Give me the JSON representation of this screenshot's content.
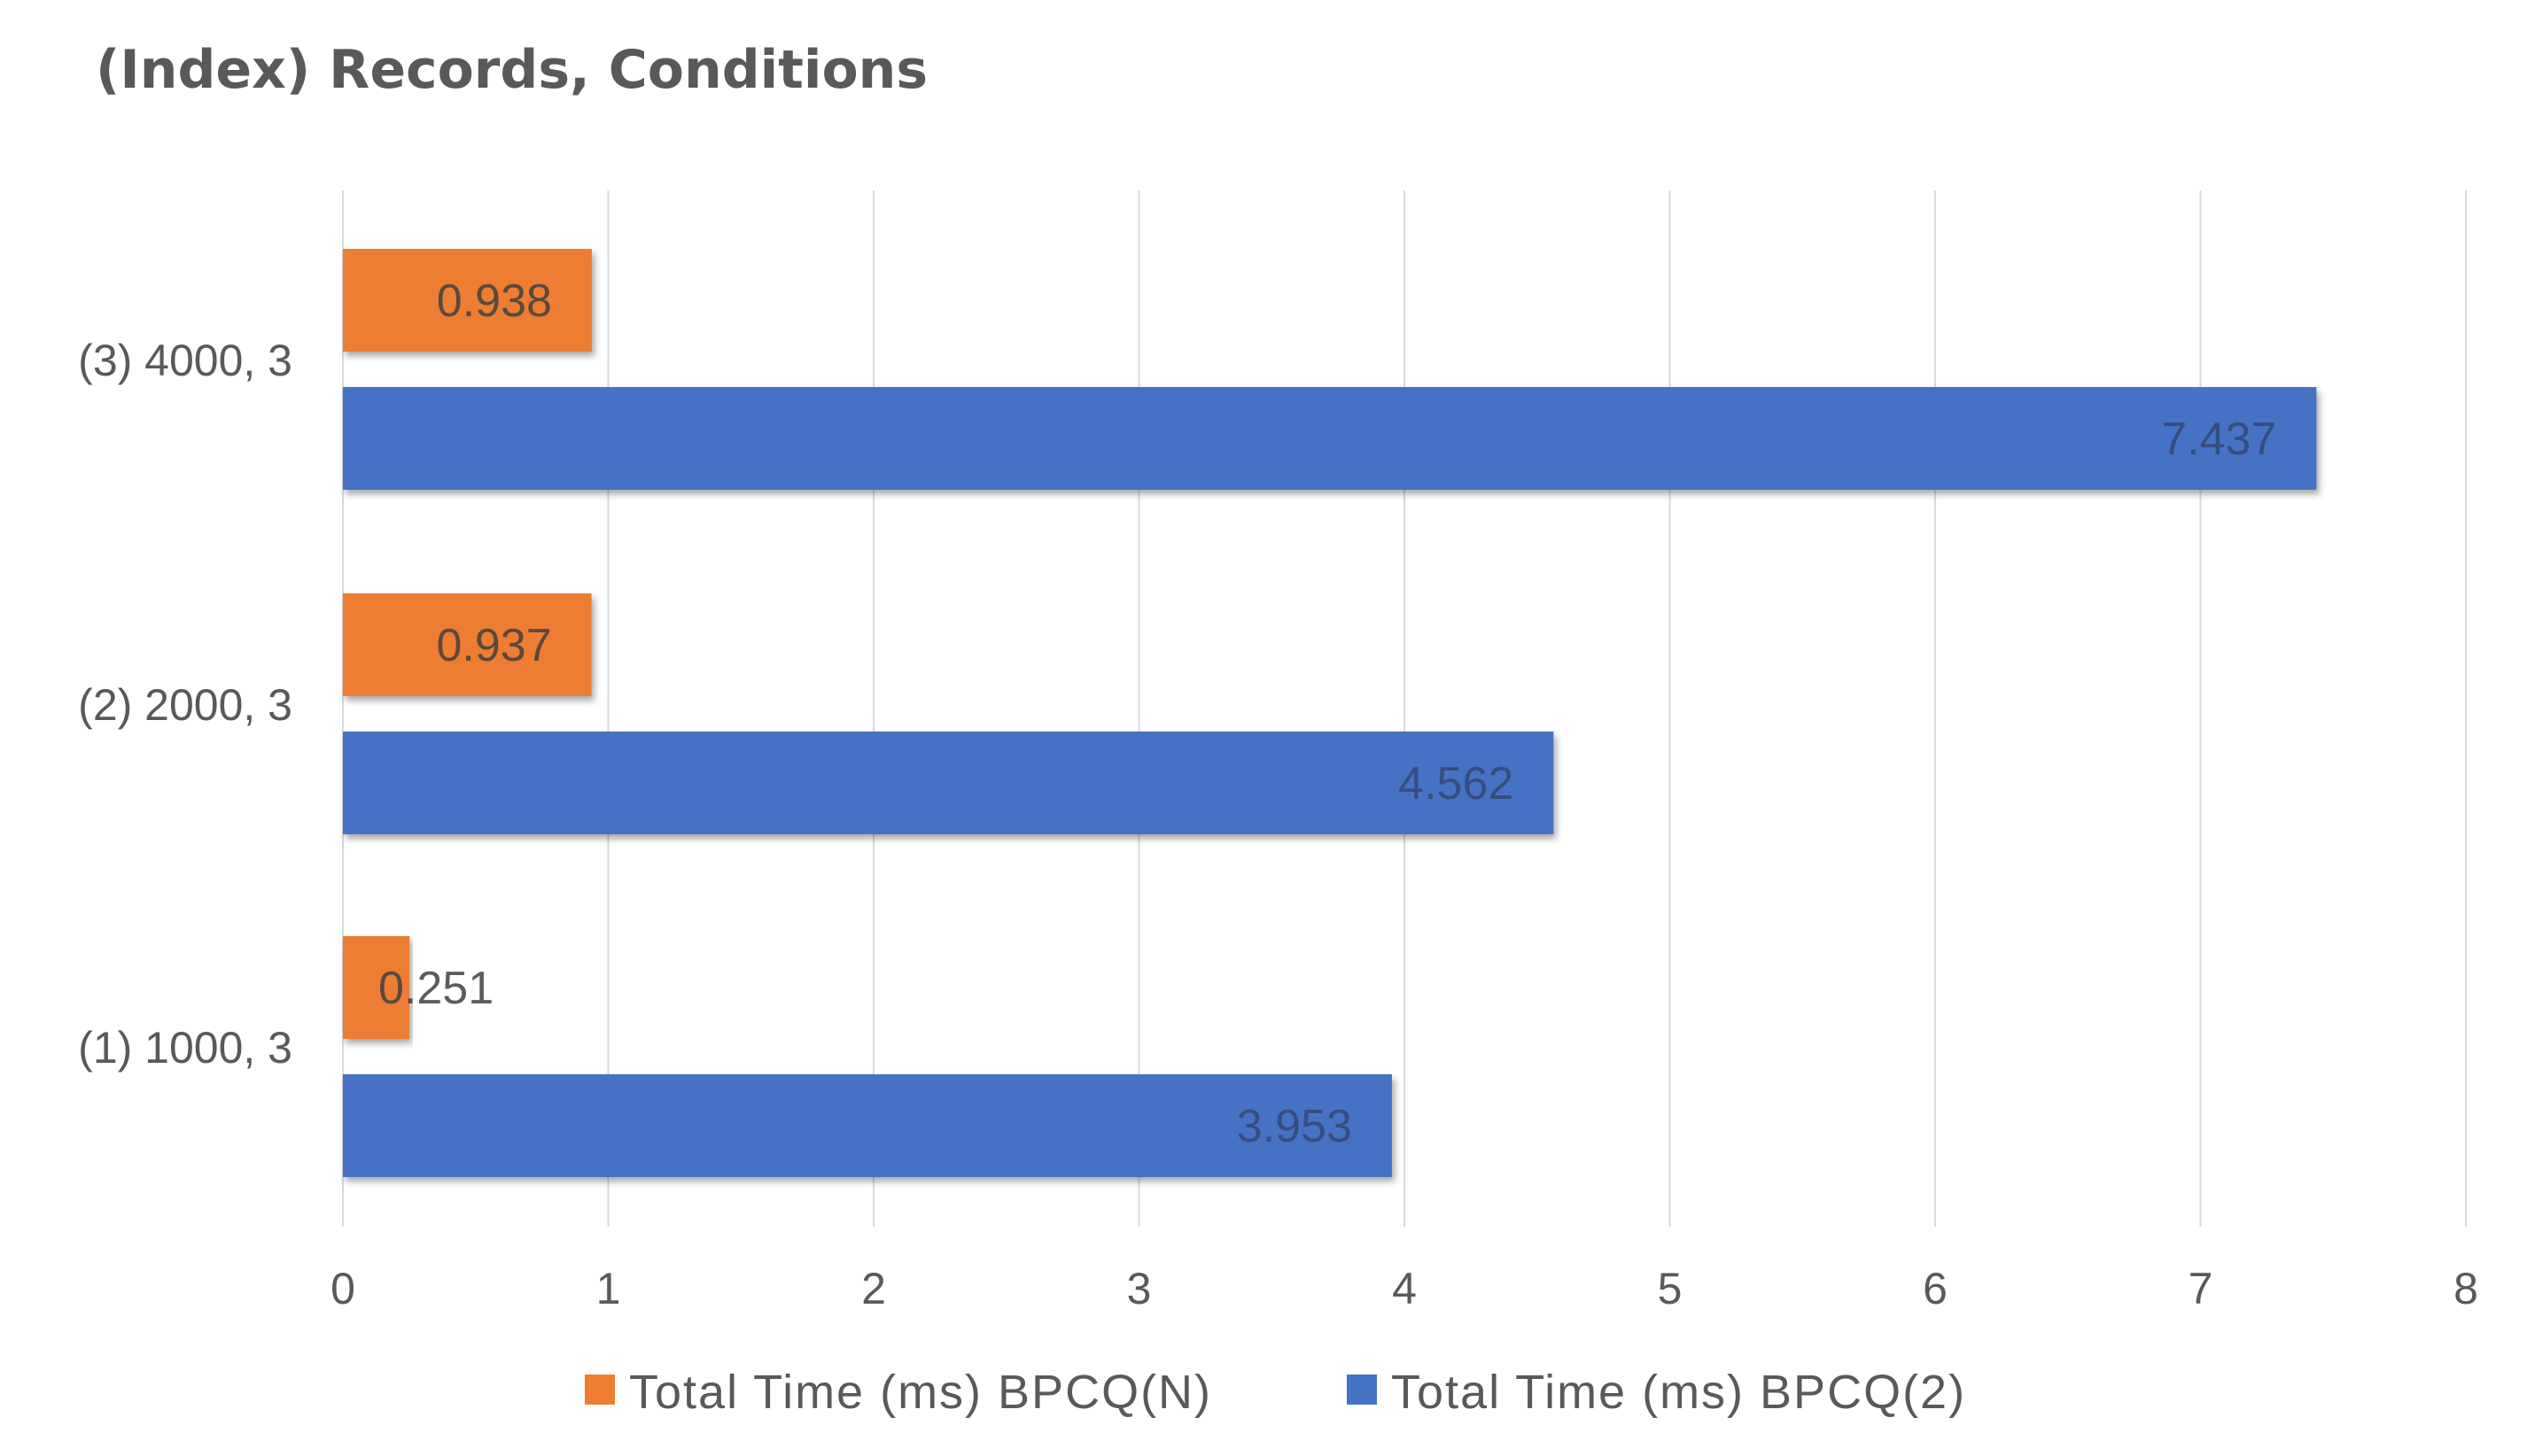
{
  "chart_data": {
    "type": "bar",
    "orientation": "horizontal",
    "title": "(Index) Records, Conditions",
    "xlabel": "",
    "ylabel": "",
    "categories": [
      "(1) 1000, 3",
      "(2) 2000, 3",
      "(3) 4000, 3"
    ],
    "series": [
      {
        "name": "Total Time (ms) BPCQ(N)",
        "color": "#ED7D31",
        "values": [
          0.251,
          0.937,
          0.938
        ],
        "labels": [
          "0.251",
          "0.937",
          "0.938"
        ]
      },
      {
        "name": "Total Time (ms) BPCQ(2)",
        "color": "#4472C4",
        "values": [
          3.953,
          4.562,
          7.437
        ],
        "labels": [
          "3.953",
          "4.562",
          "7.437"
        ]
      }
    ],
    "xlim": [
      0,
      8
    ],
    "xticks": [
      "0",
      "1",
      "2",
      "3",
      "4",
      "5",
      "6",
      "7",
      "8"
    ],
    "grid": true,
    "legend_position": "bottom"
  }
}
